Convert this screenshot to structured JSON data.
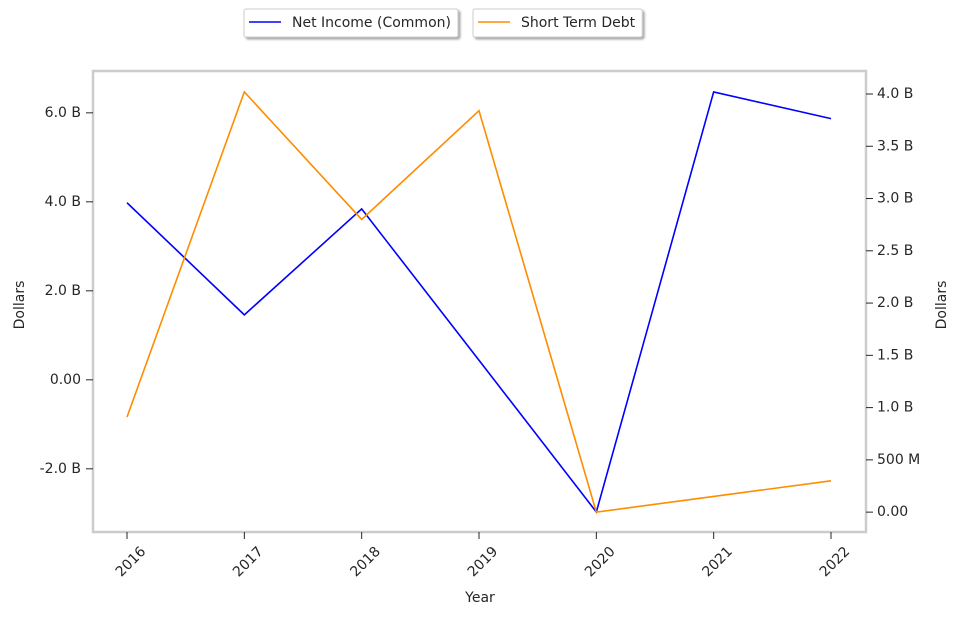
{
  "chart_data": {
    "type": "line",
    "x_label": "Year",
    "y_label": "Dollars",
    "y2_label": "Dollars",
    "categories": [
      "2016",
      "2017",
      "2018",
      "2019",
      "2020",
      "2021",
      "2022"
    ],
    "series": [
      {
        "name": "Net Income (Common)",
        "color": "#0000ff",
        "values": [
          3980000000,
          1460000000,
          3840000000,
          440000000,
          -2970000000,
          6470000000,
          5870000000
        ]
      },
      {
        "name": "Short Term Debt",
        "color": "#ff8c00",
        "axis": "y2",
        "values": [
          910000000,
          4020000000,
          2800000000,
          3840000000,
          0,
          150000000,
          300000000
        ]
      }
    ],
    "ylim": [
      -3420000000,
      6940000000
    ],
    "yticks": [
      {
        "value": -2000000000,
        "label": "-2.0 B"
      },
      {
        "value": 0,
        "label": "0.00"
      },
      {
        "value": 2000000000,
        "label": "2.0 B"
      },
      {
        "value": 4000000000,
        "label": "4.0 B"
      },
      {
        "value": 6000000000,
        "label": "6.0 B"
      }
    ],
    "y2lim": [
      -190000000,
      4220000000
    ],
    "y2ticks": [
      {
        "value": 0,
        "label": "0.00"
      },
      {
        "value": 500000000,
        "label": "500 M"
      },
      {
        "value": 1000000000,
        "label": "1.0 B"
      },
      {
        "value": 1500000000,
        "label": "1.5 B"
      },
      {
        "value": 2000000000,
        "label": "2.0 B"
      },
      {
        "value": 2500000000,
        "label": "2.5 B"
      },
      {
        "value": 3000000000,
        "label": "3.0 B"
      },
      {
        "value": 3500000000,
        "label": "3.5 B"
      },
      {
        "value": 4000000000,
        "label": "4.0 B"
      }
    ],
    "grid": false,
    "legend": "top"
  }
}
